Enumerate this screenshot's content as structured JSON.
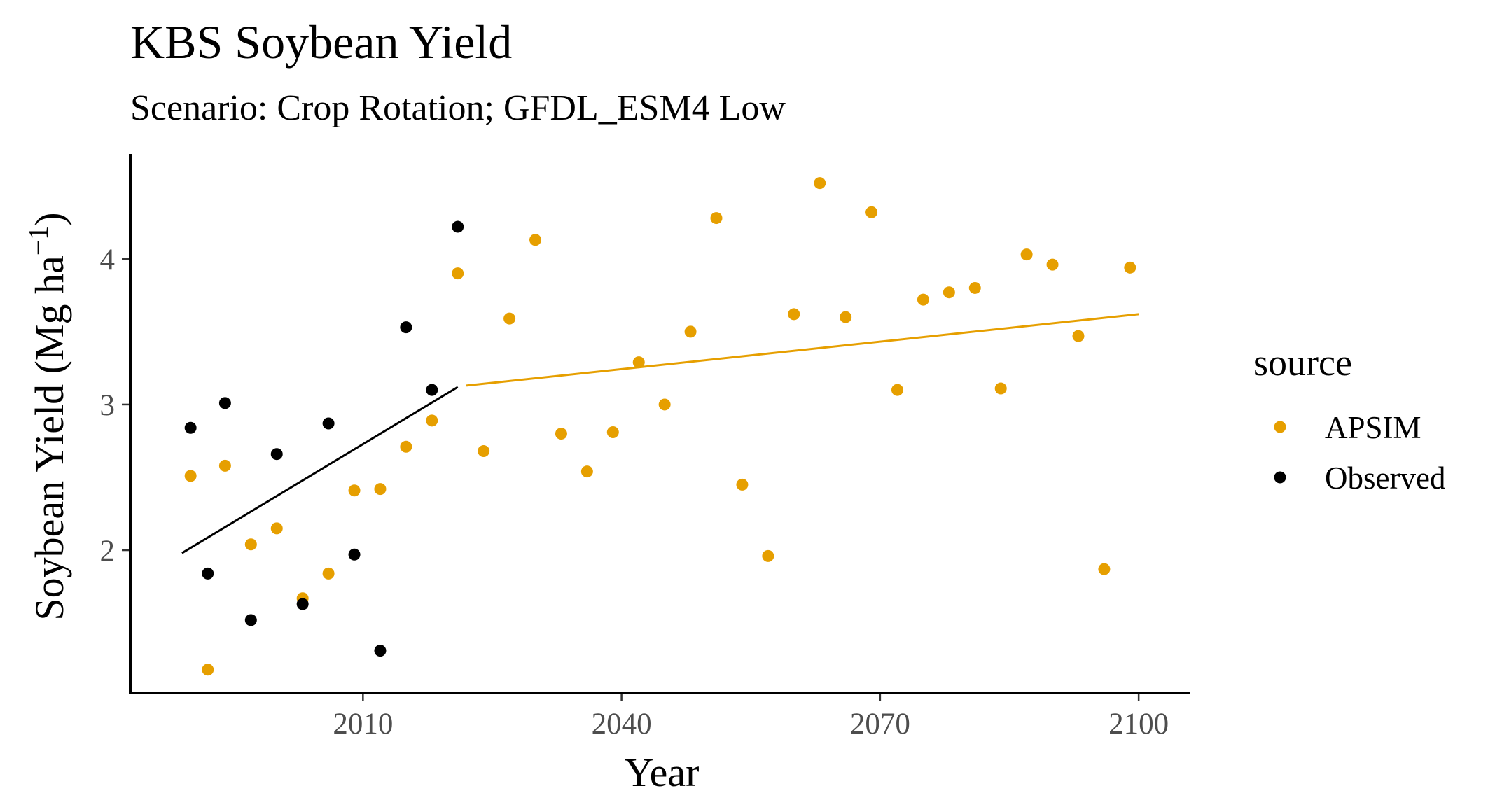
{
  "chart_data": {
    "type": "scatter",
    "title": "KBS Soybean Yield",
    "subtitle": "Scenario: Crop Rotation; GFDL_ESM4 Low",
    "xlabel": "Year",
    "ylabel_main": "Soybean Yield (Mg ha",
    "ylabel_sup": "−1",
    "ylabel_close": ")",
    "xlim": [
      1983,
      2106
    ],
    "ylim": [
      1.02,
      4.72
    ],
    "x_ticks": [
      2010,
      2040,
      2070,
      2100
    ],
    "y_ticks": [
      2,
      3,
      4
    ],
    "grid": false,
    "legend": {
      "title": "source",
      "position": "right",
      "entries": [
        {
          "label": "APSIM",
          "color": "#E69F00"
        },
        {
          "label": "Observed",
          "color": "#000000"
        }
      ]
    },
    "series": [
      {
        "name": "APSIM",
        "color": "#E69F00",
        "points": [
          {
            "x": 1990,
            "y": 2.51
          },
          {
            "x": 1992,
            "y": 1.18
          },
          {
            "x": 1994,
            "y": 2.58
          },
          {
            "x": 1997,
            "y": 2.04
          },
          {
            "x": 2000,
            "y": 2.15
          },
          {
            "x": 2003,
            "y": 1.67
          },
          {
            "x": 2006,
            "y": 1.84
          },
          {
            "x": 2009,
            "y": 2.41
          },
          {
            "x": 2012,
            "y": 2.42
          },
          {
            "x": 2015,
            "y": 2.71
          },
          {
            "x": 2018,
            "y": 2.89
          },
          {
            "x": 2021,
            "y": 3.9
          },
          {
            "x": 2024,
            "y": 2.68
          },
          {
            "x": 2027,
            "y": 3.59
          },
          {
            "x": 2030,
            "y": 4.13
          },
          {
            "x": 2033,
            "y": 2.8
          },
          {
            "x": 2036,
            "y": 2.54
          },
          {
            "x": 2039,
            "y": 2.81
          },
          {
            "x": 2042,
            "y": 3.29
          },
          {
            "x": 2045,
            "y": 3.0
          },
          {
            "x": 2048,
            "y": 3.5
          },
          {
            "x": 2051,
            "y": 4.28
          },
          {
            "x": 2054,
            "y": 2.45
          },
          {
            "x": 2057,
            "y": 1.96
          },
          {
            "x": 2060,
            "y": 3.62
          },
          {
            "x": 2063,
            "y": 4.52
          },
          {
            "x": 2066,
            "y": 3.6
          },
          {
            "x": 2069,
            "y": 4.32
          },
          {
            "x": 2072,
            "y": 3.1
          },
          {
            "x": 2075,
            "y": 3.72
          },
          {
            "x": 2078,
            "y": 3.77
          },
          {
            "x": 2081,
            "y": 3.8
          },
          {
            "x": 2084,
            "y": 3.11
          },
          {
            "x": 2087,
            "y": 4.03
          },
          {
            "x": 2090,
            "y": 3.96
          },
          {
            "x": 2093,
            "y": 3.47
          },
          {
            "x": 2096,
            "y": 1.87
          },
          {
            "x": 2099,
            "y": 3.94
          }
        ],
        "trend": [
          {
            "x": 2022,
            "y": 3.13
          },
          {
            "x": 2100,
            "y": 3.62
          }
        ]
      },
      {
        "name": "Observed",
        "color": "#000000",
        "points": [
          {
            "x": 1990,
            "y": 2.84
          },
          {
            "x": 1992,
            "y": 1.84
          },
          {
            "x": 1994,
            "y": 3.01
          },
          {
            "x": 1997,
            "y": 1.52
          },
          {
            "x": 2000,
            "y": 2.66
          },
          {
            "x": 2003,
            "y": 1.63
          },
          {
            "x": 2006,
            "y": 2.87
          },
          {
            "x": 2009,
            "y": 1.97
          },
          {
            "x": 2012,
            "y": 1.31
          },
          {
            "x": 2015,
            "y": 3.53
          },
          {
            "x": 2018,
            "y": 3.1
          },
          {
            "x": 2021,
            "y": 4.22
          }
        ],
        "trend": [
          {
            "x": 1989,
            "y": 1.98
          },
          {
            "x": 2021,
            "y": 3.12
          }
        ]
      }
    ]
  }
}
